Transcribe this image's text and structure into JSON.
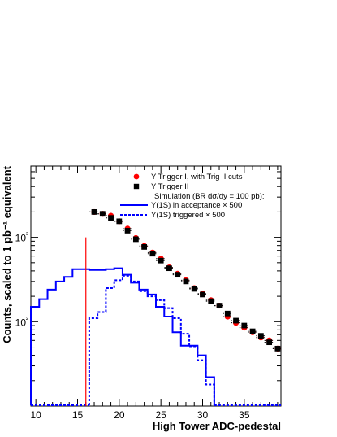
{
  "chart_data": {
    "type": "scatter",
    "xlabel": "High Tower ADC-pedestal",
    "ylabel": "Counts, scaled to 1 pb⁻¹ equivalent",
    "x_ticks": [
      "10",
      "15",
      "20",
      "25",
      "30",
      "35"
    ],
    "y_ticks": [
      "10²",
      "10³"
    ],
    "xlim": [
      9.4,
      39.4
    ],
    "ylim": [
      10,
      7000
    ],
    "log_y": true,
    "legend_position": "top-right",
    "threshold_line": {
      "x": 16,
      "y_top": 1000,
      "color": "#ff0000"
    },
    "legend": {
      "trig1": "Υ Trigger I, with Trig II cuts",
      "trig2": "Υ Trigger II",
      "sim": "Simulation (BR dσ/dy = 100 pb):",
      "accept": "Υ(1S) in acceptance × 500",
      "triggered": "Υ(1S) triggered × 500"
    },
    "series": [
      {
        "name": "Υ Trigger I, with Trig II cuts",
        "marker": "circle",
        "color": "#ff0000",
        "x": [
          17,
          18,
          19,
          20,
          21,
          22,
          23,
          24,
          25,
          26,
          27,
          28,
          29,
          30,
          31,
          32,
          33,
          34,
          35,
          36,
          37,
          38,
          39
        ],
        "y": [
          2000,
          1900,
          1800,
          1550,
          1270,
          980,
          790,
          660,
          560,
          440,
          370,
          310,
          250,
          215,
          180,
          155,
          115,
          97,
          85,
          75,
          65,
          60,
          48
        ]
      },
      {
        "name": "Υ Trigger II",
        "marker": "square",
        "color": "#000000",
        "x": [
          17,
          18,
          19,
          20,
          21,
          22,
          23,
          24,
          25,
          26,
          27,
          28,
          29,
          30,
          31,
          32,
          33,
          34,
          35,
          36,
          37,
          38,
          39
        ],
        "y": [
          2000,
          1900,
          1700,
          1550,
          1200,
          950,
          770,
          640,
          530,
          430,
          360,
          300,
          245,
          210,
          175,
          155,
          125,
          103,
          90,
          77,
          68,
          57,
          48
        ]
      },
      {
        "name": "Υ(1S) in acceptance × 500",
        "style": "solid-step",
        "color": "#0000ff",
        "bin_edges": [
          9.4,
          10.4,
          11.4,
          12.4,
          13.4,
          14.4,
          15.4,
          16.4,
          17.4,
          18.4,
          19.4,
          20.4,
          21.4,
          22.4,
          23.4,
          24.4,
          25.4,
          26.4,
          27.4,
          28.4,
          29.4,
          30.4,
          31.4
        ],
        "y": [
          150,
          185,
          240,
          300,
          340,
          420,
          420,
          410,
          410,
          420,
          430,
          360,
          290,
          240,
          210,
          150,
          115,
          75,
          52,
          52,
          40,
          22,
          10
        ]
      },
      {
        "name": "Υ(1S) triggered × 500",
        "style": "dashed-step",
        "color": "#0000ff",
        "bin_edges": [
          16.4,
          17.4,
          18.4,
          19.4,
          20.4,
          21.4,
          22.4,
          23.4,
          24.4,
          25.4,
          26.4,
          27.4,
          28.4,
          29.4,
          30.4,
          31.4
        ],
        "y": [
          110,
          130,
          250,
          310,
          350,
          300,
          230,
          200,
          180,
          145,
          110,
          72,
          50,
          35,
          18,
          10
        ]
      }
    ]
  }
}
